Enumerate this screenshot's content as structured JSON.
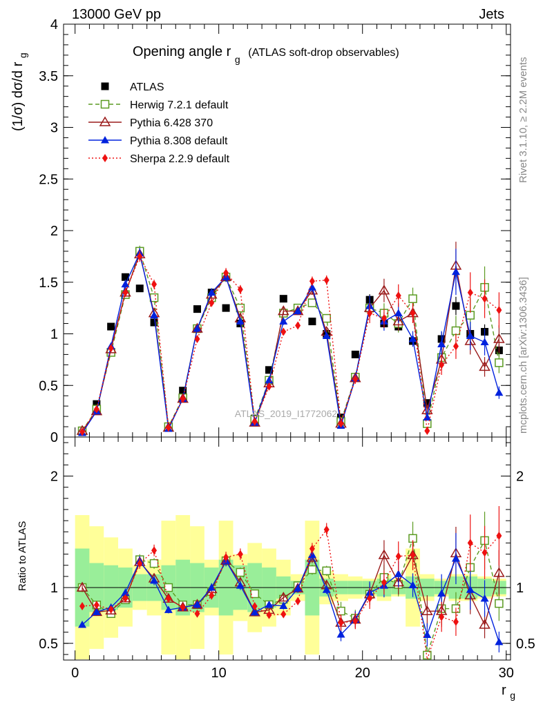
{
  "header": {
    "energy_label": "13000 GeV pp",
    "category_label": "Jets"
  },
  "plot_title": {
    "main": "Opening angle r",
    "subscript": "g",
    "suffix": "(ATLAS soft-drop observables)"
  },
  "y_axis_label": {
    "main": "(1/σ) dσ/d r",
    "subscript": "g"
  },
  "ratio_axis_label": "Ratio to ATLAS",
  "x_axis_label": {
    "main": "r",
    "subscript": "g"
  },
  "side_text_top": "Rivet 3.1.10, ≥ 2.2M events",
  "side_text_bottom": "mcplots.cern.ch [arXiv:1306.3436]",
  "watermark": "ATLAS_2019_I1772062",
  "legend": [
    {
      "label": "ATLAS",
      "color": "#000000",
      "marker": "filled-square",
      "line": "none"
    },
    {
      "label": "Herwig 7.2.1 default",
      "color": "#5a9a20",
      "marker": "open-square",
      "line": "dashed"
    },
    {
      "label": "Pythia 6.428 370",
      "color": "#9a1a1a",
      "marker": "open-triangle",
      "line": "solid"
    },
    {
      "label": "Pythia 8.308 default",
      "color": "#0022dd",
      "marker": "filled-triangle",
      "line": "solid"
    },
    {
      "label": "Sherpa 2.2.9 default",
      "color": "#ee1111",
      "marker": "filled-diamond",
      "line": "dotted"
    }
  ],
  "chart_data": {
    "type": "scatter",
    "x": [
      0.5,
      1.5,
      2.5,
      3.5,
      4.5,
      5.5,
      6.5,
      7.5,
      8.5,
      9.5,
      10.5,
      11.5,
      12.5,
      13.5,
      14.5,
      15.5,
      16.5,
      17.5,
      18.5,
      19.5,
      20.5,
      21.5,
      22.5,
      23.5,
      24.5,
      25.5,
      26.5,
      27.5,
      28.5,
      29.5
    ],
    "main_ylim": [
      0,
      4
    ],
    "main_yticks": [
      0,
      0.5,
      1,
      1.5,
      2,
      2.5,
      3,
      3.5,
      4
    ],
    "main_ytick_labels": [
      "0",
      "0.5",
      "1",
      "1.5",
      "2",
      "2.5",
      "3",
      "3.5",
      "4"
    ],
    "xlim": [
      -0.8,
      30.3
    ],
    "xticks": [
      0,
      10,
      20,
      30
    ],
    "xtick_labels": [
      "0",
      "10",
      "20",
      "30"
    ],
    "ratio_ylim": [
      0.35,
      2.35
    ],
    "ratio_yticks": [
      0.5,
      1,
      2
    ],
    "ratio_ytick_labels": [
      "0.5",
      "1",
      "2"
    ],
    "ratio_reference": 1,
    "ratio_band_inner": [
      0.35,
      0.22,
      0.2,
      0.18,
      0.12,
      0.12,
      0.2,
      0.25,
      0.22,
      0.18,
      0.25,
      0.2,
      0.22,
      0.18,
      0.1,
      0.06,
      0.25,
      0.08,
      0.06,
      0.06,
      0.06,
      0.08,
      0.06,
      0.1,
      0.08,
      0.06,
      0.1,
      0.1,
      0.08,
      0.06
    ],
    "ratio_band_outer": [
      0.65,
      0.55,
      0.45,
      0.35,
      0.2,
      0.25,
      0.6,
      0.65,
      0.55,
      0.25,
      0.6,
      0.3,
      0.4,
      0.35,
      0.25,
      0.12,
      0.6,
      0.15,
      0.12,
      0.1,
      0.08,
      0.12,
      0.08,
      0.35,
      0.12,
      0.08,
      0.12,
      0.12,
      0.1,
      0.08
    ],
    "series": [
      {
        "name": "ATLAS",
        "values": [
          0.06,
          0.32,
          1.07,
          1.55,
          1.44,
          1.11,
          0.1,
          0.45,
          1.24,
          1.4,
          1.25,
          1.1,
          0.18,
          0.65,
          1.34,
          1.23,
          1.12,
          1.0,
          0.19,
          0.8,
          1.33,
          1.1,
          1.07,
          0.93,
          0.33,
          0.95,
          1.27,
          1.0,
          1.02,
          0.84
        ]
      },
      {
        "name": "Herwig 7.2.1 default",
        "values": [
          0.06,
          0.27,
          0.82,
          1.38,
          1.8,
          1.35,
          0.1,
          0.38,
          1.05,
          1.35,
          1.55,
          1.25,
          0.17,
          0.55,
          1.2,
          1.25,
          1.3,
          1.15,
          0.15,
          0.58,
          1.25,
          1.2,
          1.1,
          1.34,
          0.13,
          0.77,
          1.03,
          1.18,
          1.45,
          0.72
        ]
      },
      {
        "name": "Pythia 6.428 370",
        "values": [
          0.06,
          0.25,
          0.85,
          1.4,
          1.77,
          1.2,
          0.09,
          0.37,
          1.05,
          1.38,
          1.55,
          1.15,
          0.14,
          0.52,
          1.22,
          1.22,
          1.42,
          1.02,
          0.13,
          0.57,
          1.25,
          1.42,
          1.12,
          1.2,
          0.26,
          0.75,
          1.66,
          0.93,
          0.68,
          0.95
        ]
      },
      {
        "name": "Pythia 8.308 default",
        "values": [
          0.04,
          0.25,
          0.88,
          1.48,
          1.78,
          1.18,
          0.08,
          0.37,
          1.05,
          1.4,
          1.55,
          1.12,
          0.14,
          0.55,
          1.12,
          1.22,
          1.45,
          0.98,
          0.11,
          0.57,
          1.27,
          1.12,
          1.2,
          0.95,
          0.19,
          0.9,
          1.6,
          0.98,
          0.92,
          0.43
        ]
      },
      {
        "name": "Sherpa 2.2.9 default",
        "values": [
          0.05,
          0.27,
          0.86,
          1.4,
          1.75,
          1.48,
          0.09,
          0.37,
          0.95,
          1.3,
          1.59,
          1.43,
          0.15,
          0.49,
          1.02,
          1.08,
          1.51,
          1.52,
          0.13,
          0.56,
          1.2,
          1.15,
          1.37,
          1.2,
          0.06,
          0.7,
          0.88,
          1.4,
          1.34,
          1.23
        ]
      }
    ]
  }
}
